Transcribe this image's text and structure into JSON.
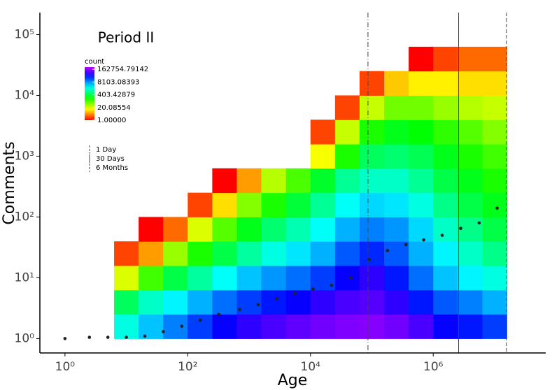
{
  "chart_data": {
    "type": "heatmap2d",
    "annotation": "Period II",
    "x_label": "Age",
    "y_label": "Comments",
    "log_x": true,
    "log_y": true,
    "xlim": [
      0.39,
      68000000
    ],
    "ylim": [
      0.58,
      230000
    ],
    "xticks": [
      {
        "value": 1,
        "label": "10⁰"
      },
      {
        "value": 100,
        "label": "10²"
      },
      {
        "value": 10000,
        "label": "10⁴"
      },
      {
        "value": 1000000,
        "label": "10⁶"
      }
    ],
    "yticks": [
      {
        "value": 1,
        "label": "10⁰"
      },
      {
        "value": 10,
        "label": "10¹"
      },
      {
        "value": 100,
        "label": "10²"
      },
      {
        "value": 1000,
        "label": "10³"
      },
      {
        "value": 10000,
        "label": "10⁴"
      },
      {
        "value": 100000,
        "label": "10⁵"
      }
    ],
    "colorbar": {
      "title": "count",
      "log": true,
      "range": [
        1,
        270000
      ],
      "ticks": [
        {
          "value": 162754.79142,
          "label": "162754.79142"
        },
        {
          "value": 8103.08393,
          "label": "8103.08393"
        },
        {
          "value": 403.42879,
          "label": "403.42879"
        },
        {
          "value": 20.08554,
          "label": "20.08554"
        },
        {
          "value": 1,
          "label": "1.00000"
        }
      ]
    },
    "x_bins": [
      6.31,
      15.85,
      39.8,
      100,
      251,
      631,
      1585,
      3981,
      10000,
      25119,
      63096,
      158489,
      398107,
      1000000,
      2510000,
      6310000,
      15800000
    ],
    "y_bins": [
      1,
      2.51,
      6.31,
      15.85,
      39.8,
      100,
      251,
      631,
      1585,
      3981,
      10000,
      25119,
      63096
    ],
    "counts": [
      [
        2000,
        5000,
        10000,
        20000,
        40000,
        60000,
        80000,
        100000,
        120000,
        140000,
        150000,
        120000,
        80000,
        40000,
        30000,
        20000
      ],
      [
        500,
        1500,
        3000,
        6000,
        12000,
        20000,
        30000,
        40000,
        60000,
        80000,
        90000,
        60000,
        30000,
        15000,
        10000,
        6000
      ],
      [
        20,
        100,
        400,
        1000,
        2500,
        5000,
        8000,
        12000,
        20000,
        40000,
        60000,
        30000,
        12000,
        5000,
        3000,
        2000
      ],
      [
        2,
        5,
        40,
        150,
        400,
        1000,
        2000,
        3500,
        6000,
        15000,
        25000,
        15000,
        6000,
        3000,
        1500,
        800
      ],
      [
        null,
        1,
        3,
        20,
        80,
        250,
        600,
        1200,
        2500,
        6000,
        10000,
        8000,
        4000,
        1500,
        800,
        400
      ],
      [
        null,
        null,
        null,
        2,
        10,
        50,
        150,
        350,
        900,
        2500,
        4000,
        3500,
        2000,
        800,
        400,
        250
      ],
      [
        null,
        null,
        null,
        null,
        1,
        5,
        30,
        90,
        300,
        900,
        1500,
        1500,
        900,
        400,
        250,
        150
      ],
      [
        null,
        null,
        null,
        null,
        null,
        null,
        null,
        null,
        15,
        150,
        500,
        600,
        450,
        250,
        150,
        100
      ],
      [
        null,
        null,
        null,
        null,
        null,
        null,
        null,
        null,
        2,
        25,
        150,
        250,
        200,
        120,
        80,
        50
      ],
      [
        null,
        null,
        null,
        null,
        null,
        null,
        null,
        null,
        null,
        2,
        25,
        60,
        60,
        40,
        30,
        25
      ],
      [
        null,
        null,
        null,
        null,
        null,
        null,
        null,
        null,
        null,
        null,
        2,
        8,
        12,
        12,
        10,
        10
      ],
      [
        null,
        null,
        null,
        null,
        null,
        null,
        null,
        null,
        null,
        null,
        null,
        null,
        1,
        2,
        3,
        3
      ]
    ],
    "points": {
      "color": "#222222",
      "x": [
        1,
        2.5,
        5,
        10,
        20,
        40,
        80,
        160,
        320,
        700,
        1400,
        2800,
        5500,
        11000,
        22000,
        45000,
        90000,
        180000,
        360000,
        700000,
        1400000,
        2800000,
        5600000,
        11000000
      ],
      "y": [
        1,
        1.05,
        1.05,
        1.05,
        1.1,
        1.3,
        1.6,
        2,
        2.5,
        3,
        3.6,
        4.5,
        5.5,
        6.5,
        7.5,
        10,
        20,
        28,
        35,
        42,
        50,
        65,
        80,
        140
      ]
    },
    "reference_lines": [
      {
        "name": "1 Day",
        "value": 86400,
        "dash": "dashdot"
      },
      {
        "name": "30 Days",
        "value": 2592000,
        "dash": "solid"
      },
      {
        "name": "6 Months",
        "value": 15552000,
        "dash": "dashed"
      }
    ]
  }
}
